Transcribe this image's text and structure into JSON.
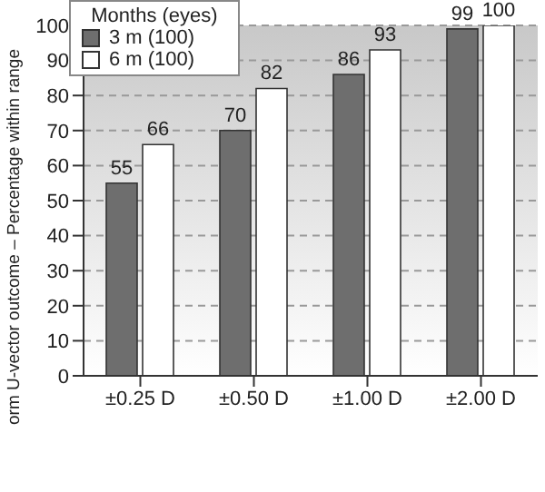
{
  "chart_data": {
    "type": "bar",
    "ylabel": "orm U-vector outcome – Percentage within range",
    "legend_title": "Months (eyes)",
    "categories": [
      "±0.25 D",
      "±0.50 D",
      "±1.00 D",
      "±2.00 D"
    ],
    "series": [
      {
        "name": "3 m (100)",
        "color": "#6e6e6e",
        "values": [
          55,
          70,
          86,
          99
        ]
      },
      {
        "name": "6 m (100)",
        "color": "#ffffff",
        "values": [
          66,
          82,
          93,
          100
        ]
      }
    ],
    "ylim": [
      0,
      100
    ],
    "yticks": [
      0,
      10,
      20,
      30,
      40,
      50,
      60,
      70,
      80,
      90,
      100
    ],
    "grid": "y",
    "legend": "top left",
    "data_labels": true
  }
}
